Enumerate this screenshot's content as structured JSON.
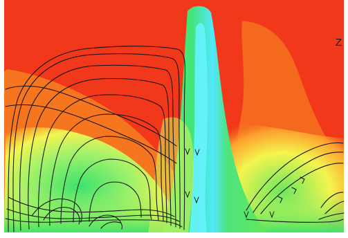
{
  "image": {
    "corner_label": "Z"
  },
  "colors": {
    "red": "#f0351a",
    "orange": "#f66a1d",
    "yellow": "#f3f34c",
    "green": "#3cd96c",
    "cyan": "#58f4ff",
    "stream": "#101010"
  }
}
